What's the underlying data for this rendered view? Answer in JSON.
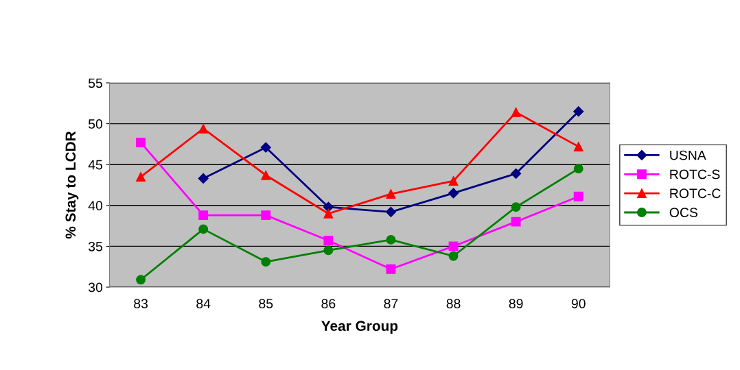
{
  "chart_data": {
    "type": "line",
    "xlabel": "Year Group",
    "ylabel": "% Stay to LCDR",
    "categories": [
      "83",
      "84",
      "85",
      "86",
      "87",
      "88",
      "89",
      "90"
    ],
    "series": [
      {
        "name": "USNA",
        "color": "#000080",
        "marker": "diamond",
        "values": [
          null,
          43.3,
          47.1,
          39.8,
          39.2,
          41.5,
          43.9,
          51.5
        ]
      },
      {
        "name": "ROTC-S",
        "color": "#ff00ff",
        "marker": "square",
        "values": [
          47.7,
          38.8,
          38.8,
          35.7,
          32.2,
          35.0,
          38.0,
          41.1
        ]
      },
      {
        "name": "ROTC-C",
        "color": "#ff0000",
        "marker": "triangle",
        "values": [
          43.5,
          49.4,
          43.7,
          39.0,
          41.4,
          43.0,
          51.4,
          47.2
        ]
      },
      {
        "name": "OCS",
        "color": "#008000",
        "marker": "circle",
        "values": [
          30.9,
          37.1,
          33.1,
          34.5,
          35.8,
          33.8,
          39.8,
          44.5
        ]
      }
    ],
    "ylim": [
      30,
      55
    ],
    "yticks": [
      30,
      35,
      40,
      45,
      50,
      55
    ],
    "grid": "y",
    "legend": "right",
    "line_style": "solid"
  }
}
